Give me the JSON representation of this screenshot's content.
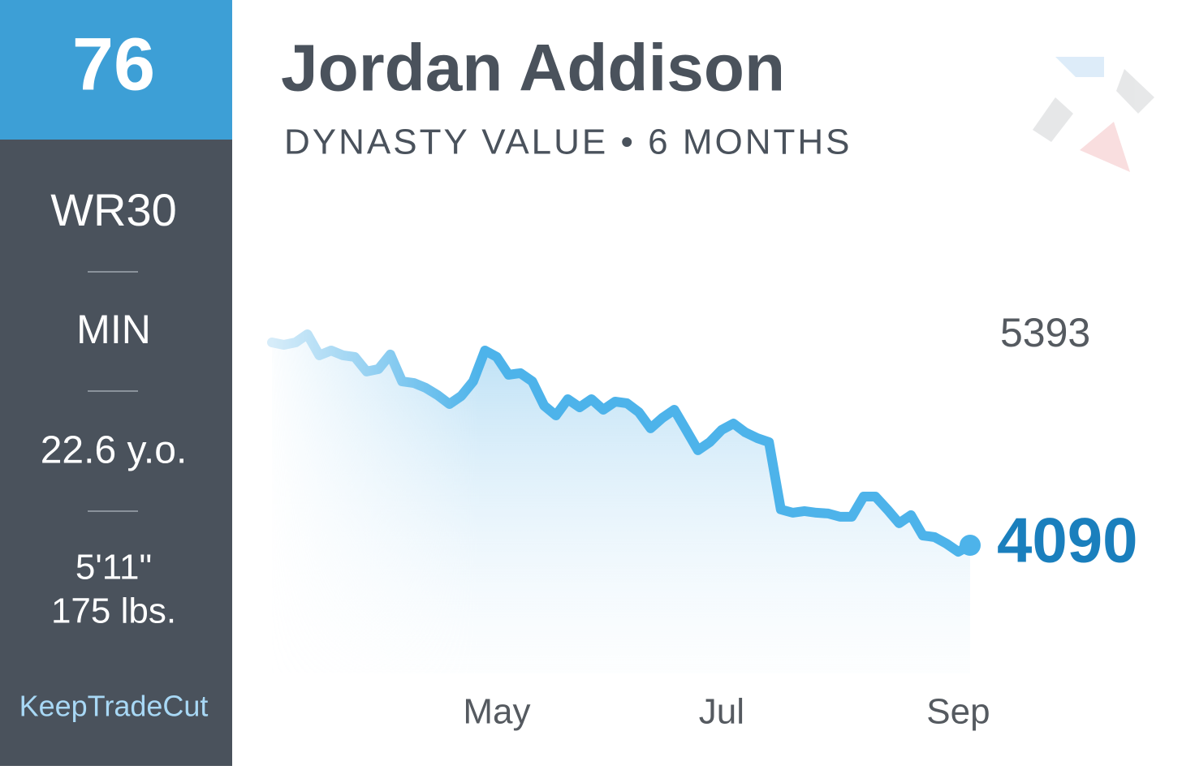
{
  "sidebar": {
    "rank": "76",
    "position_rank": "WR30",
    "team": "MIN",
    "age": "22.6 y.o.",
    "height": "5'11\"",
    "weight": "175 lbs.",
    "brand": "KeepTradeCut"
  },
  "chart_data": {
    "type": "line",
    "title": "Jordan Addison",
    "subtitle": "DYNASTY VALUE • 6 MONTHS",
    "categories": [
      null,
      null,
      null,
      null,
      null,
      null,
      null,
      null,
      null,
      null,
      null,
      null,
      null,
      null,
      null,
      null,
      null,
      null,
      null,
      "May",
      null,
      null,
      null,
      null,
      null,
      null,
      null,
      null,
      null,
      null,
      null,
      null,
      null,
      null,
      null,
      null,
      null,
      null,
      "Jul",
      null,
      null,
      null,
      null,
      null,
      null,
      null,
      null,
      null,
      null,
      null,
      null,
      null,
      null,
      null,
      null,
      null,
      null,
      null,
      "Sep",
      null
    ],
    "values": [
      5343,
      5328,
      5343,
      5393,
      5263,
      5293,
      5263,
      5253,
      5163,
      5178,
      5268,
      5102,
      5092,
      5062,
      5017,
      4962,
      5012,
      5102,
      5293,
      5253,
      5143,
      5153,
      5102,
      4952,
      4892,
      4992,
      4942,
      4992,
      4927,
      4977,
      4967,
      4912,
      4812,
      4877,
      4927,
      4802,
      4677,
      4727,
      4802,
      4842,
      4787,
      4752,
      4727,
      4311,
      4291,
      4301,
      4291,
      4286,
      4266,
      4266,
      4391,
      4391,
      4311,
      4226,
      4276,
      4150,
      4140,
      4100,
      4050,
      4090
    ],
    "color": "#4db3ea"
  }
}
